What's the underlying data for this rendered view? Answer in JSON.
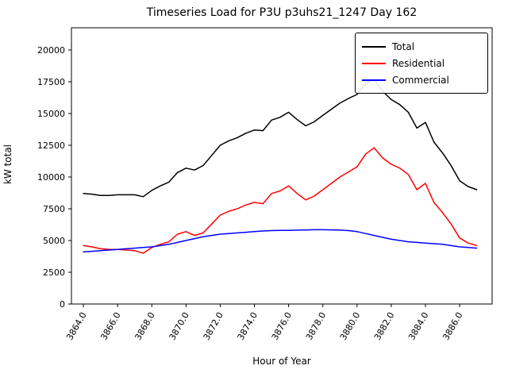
{
  "title": "Timeseries Load for P3U p3uhs21_1247  Day 162",
  "chart_data": {
    "type": "line",
    "title": "Timeseries Load for P3U p3uhs21_1247  Day 162",
    "xlabel": "Hour of Year",
    "ylabel": "kW total",
    "xlim": [
      3863.3,
      3887.9
    ],
    "ylim": [
      0,
      21750
    ],
    "grid": false,
    "legend_position": "upper right",
    "xticks": [
      3864,
      3866,
      3868,
      3870,
      3872,
      3874,
      3876,
      3878,
      3880,
      3882,
      3884,
      3886
    ],
    "xtick_labels": [
      "3864.0",
      "3866.0",
      "3868.0",
      "3870.0",
      "3872.0",
      "3874.0",
      "3876.0",
      "3878.0",
      "3880.0",
      "3882.0",
      "3884.0",
      "3886.0"
    ],
    "yticks": [
      0,
      2500,
      5000,
      7500,
      10000,
      12500,
      15000,
      17500,
      20000
    ],
    "ytick_labels": [
      "0",
      "2500",
      "5000",
      "7500",
      "10000",
      "12500",
      "15000",
      "17500",
      "20000"
    ],
    "x": [
      3864,
      3864.5,
      3865,
      3865.5,
      3866,
      3866.5,
      3867,
      3867.5,
      3868,
      3868.5,
      3869,
      3869.5,
      3870,
      3870.5,
      3871,
      3871.5,
      3872,
      3872.5,
      3873,
      3873.5,
      3874,
      3874.5,
      3875,
      3875.5,
      3876,
      3876.5,
      3877,
      3877.5,
      3878,
      3878.5,
      3879,
      3879.5,
      3880,
      3880.5,
      3881,
      3881.5,
      3882,
      3882.5,
      3883,
      3883.5,
      3884,
      3884.5,
      3885,
      3885.5,
      3886,
      3886.5,
      3887
    ],
    "series": [
      {
        "name": "Total",
        "color": "#000000",
        "values": [
          8700,
          8650,
          8550,
          8550,
          8600,
          8600,
          8600,
          8450,
          8950,
          9300,
          9600,
          10350,
          10700,
          10550,
          10900,
          11700,
          12500,
          12850,
          13100,
          13450,
          13700,
          13650,
          14480,
          14700,
          15100,
          14520,
          14030,
          14350,
          14850,
          15340,
          15820,
          16180,
          16500,
          17350,
          17700,
          16750,
          16100,
          15700,
          15100,
          13850,
          14300,
          12750,
          11900,
          10900,
          9700,
          9250,
          9000
        ]
      },
      {
        "name": "Residential",
        "color": "#ff0000",
        "values": [
          4600,
          4500,
          4350,
          4300,
          4300,
          4250,
          4200,
          4000,
          4450,
          4700,
          4900,
          5500,
          5700,
          5400,
          5600,
          6300,
          7000,
          7300,
          7500,
          7800,
          8000,
          7900,
          8700,
          8900,
          9300,
          8700,
          8200,
          8500,
          9000,
          9500,
          10000,
          10400,
          10800,
          11800,
          12300,
          11500,
          11000,
          10700,
          10200,
          9000,
          9500,
          8000,
          7200,
          6300,
          5200,
          4800,
          4600
        ]
      },
      {
        "name": "Commercial",
        "color": "#0000ff",
        "values": [
          4100,
          4150,
          4200,
          4250,
          4300,
          4350,
          4400,
          4450,
          4500,
          4600,
          4700,
          4850,
          5000,
          5150,
          5300,
          5400,
          5500,
          5550,
          5600,
          5650,
          5700,
          5750,
          5780,
          5800,
          5800,
          5820,
          5830,
          5850,
          5850,
          5840,
          5820,
          5780,
          5700,
          5550,
          5400,
          5250,
          5100,
          5000,
          4900,
          4850,
          4800,
          4750,
          4700,
          4600,
          4500,
          4450,
          4400
        ]
      }
    ]
  }
}
